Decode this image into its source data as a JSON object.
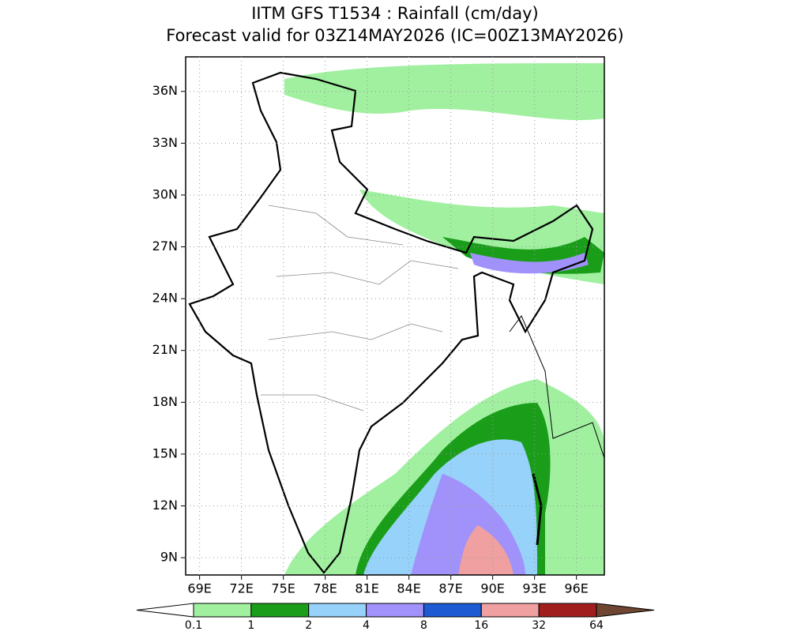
{
  "title": [
    "IITM GFS T1534 : Rainfall (cm/day)",
    "Forecast valid for 03Z14MAY2026 (IC=00Z13MAY2026)"
  ],
  "map": {
    "xlim": [
      68,
      98
    ],
    "ylim": [
      8,
      38
    ],
    "grid": true,
    "xticks": [
      {
        "value": 69,
        "label": "69E"
      },
      {
        "value": 72,
        "label": "72E"
      },
      {
        "value": 75,
        "label": "75E"
      },
      {
        "value": 78,
        "label": "78E"
      },
      {
        "value": 81,
        "label": "81E"
      },
      {
        "value": 84,
        "label": "84E"
      },
      {
        "value": 87,
        "label": "87E"
      },
      {
        "value": 90,
        "label": "90E"
      },
      {
        "value": 93,
        "label": "93E"
      },
      {
        "value": 96,
        "label": "96E"
      }
    ],
    "yticks": [
      {
        "value": 9,
        "label": "9N"
      },
      {
        "value": 12,
        "label": "12N"
      },
      {
        "value": 15,
        "label": "15N"
      },
      {
        "value": 18,
        "label": "18N"
      },
      {
        "value": 21,
        "label": "21N"
      },
      {
        "value": 24,
        "label": "24N"
      },
      {
        "value": 27,
        "label": "27N"
      },
      {
        "value": 30,
        "label": "30N"
      },
      {
        "value": 33,
        "label": "33N"
      },
      {
        "value": 36,
        "label": "36N"
      }
    ]
  },
  "colorbar": {
    "levels": [
      0.1,
      1,
      2,
      4,
      8,
      16,
      32,
      64
    ],
    "colors": [
      "#ffffff",
      "#a0f0a0",
      "#1a9e1a",
      "#96d2fa",
      "#a092fa",
      "#1e5ad2",
      "#f0a0a0",
      "#a01e1e",
      "#6e4632"
    ]
  }
}
